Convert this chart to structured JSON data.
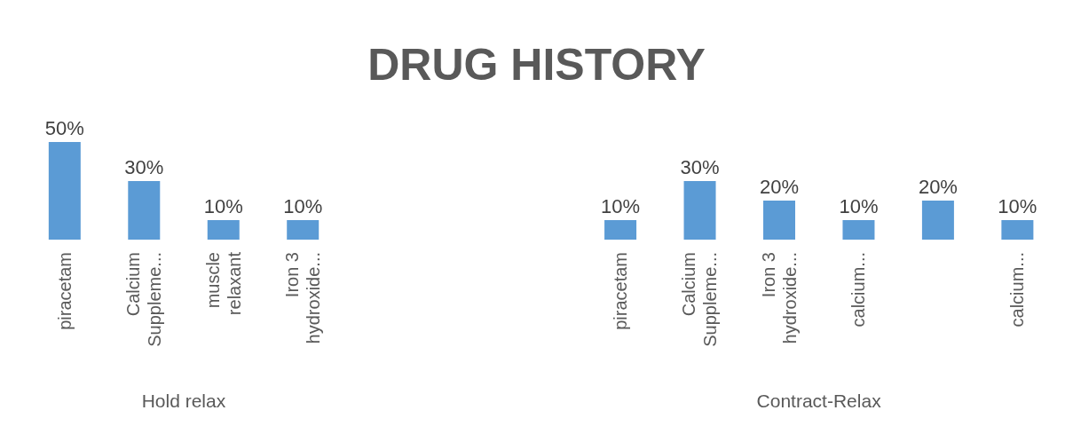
{
  "chart_data": {
    "type": "bar",
    "title": "DRUG HISTORY",
    "categories": [
      "piracetam",
      "Calcium Suppleme...",
      "muscle relaxant",
      "Iron 3 hydroxide...",
      null,
      null,
      null,
      "piracetam",
      "Calcium Suppleme...",
      "Iron 3 hydroxide...",
      "calcium...",
      null,
      "calcium..."
    ],
    "values": [
      50,
      30,
      10,
      10,
      null,
      null,
      null,
      10,
      30,
      20,
      10,
      20,
      10
    ],
    "value_labels": [
      "50%",
      "30%",
      "10%",
      "10%",
      null,
      null,
      null,
      "10%",
      "30%",
      "20%",
      "10%",
      "20%",
      "10%"
    ],
    "color": "#5b9bd5",
    "ylim": [
      0,
      50
    ],
    "tick_labels": "x",
    "annotations": [
      "Hold relax",
      "Contract-Relax"
    ]
  }
}
